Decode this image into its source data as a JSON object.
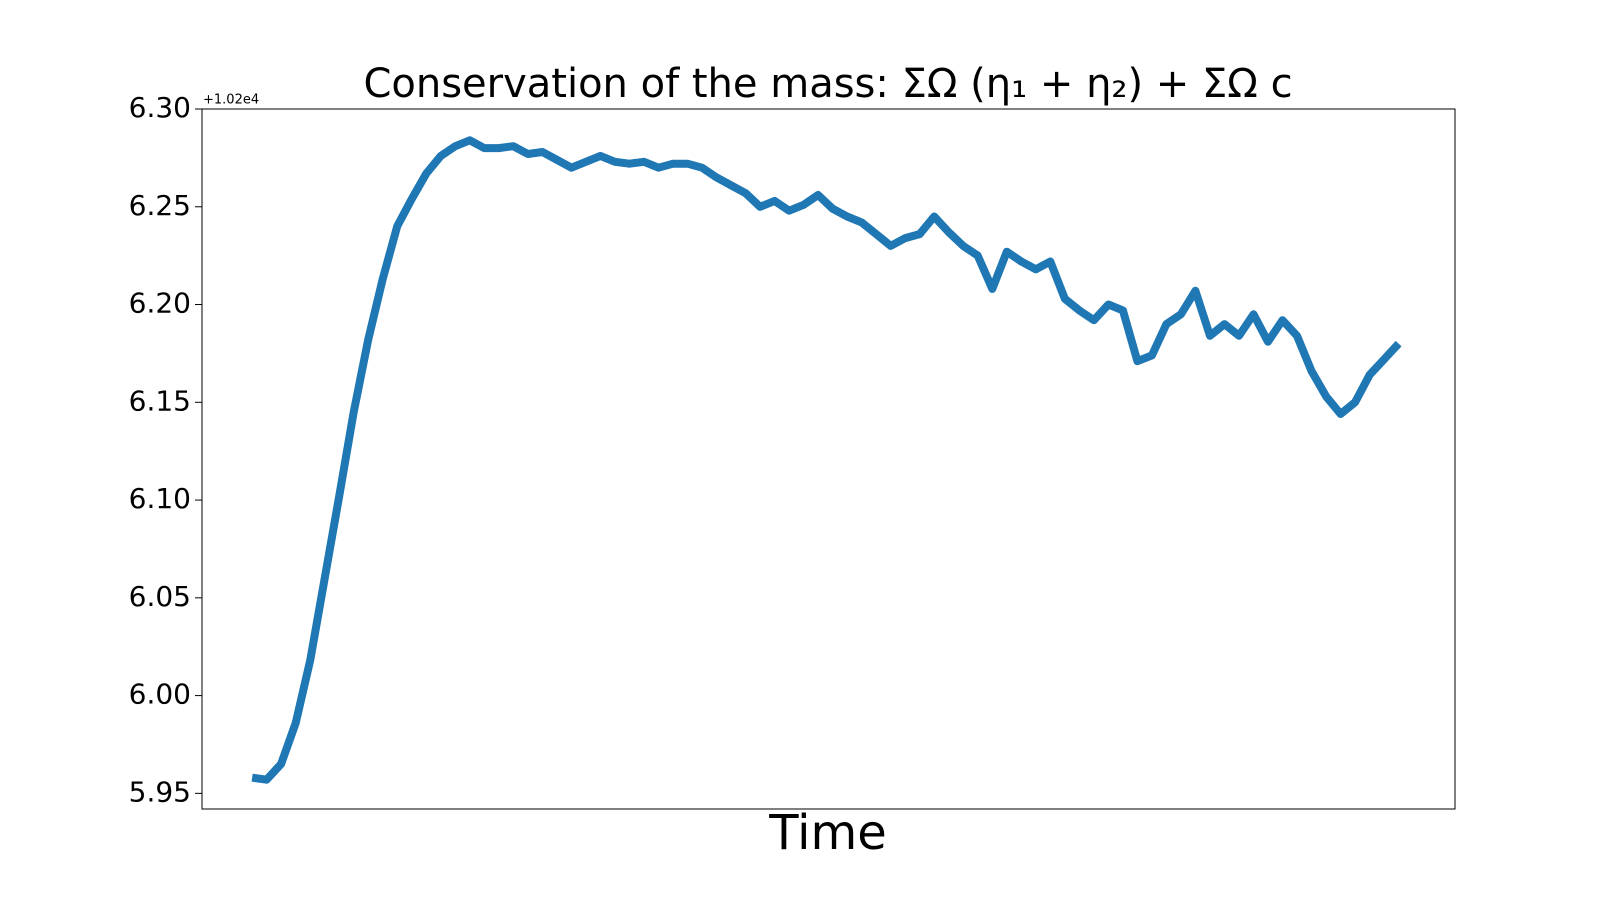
{
  "chart_data": {
    "type": "line",
    "title": "Conservation of the mass: ΣΩ (η₁ + η₂) + ΣΩ c",
    "xlabel": "Time",
    "y_offset_label": "+1.02e4",
    "series": [
      {
        "name": "mass",
        "color": "#1f77b4",
        "values": [
          5.958,
          5.957,
          5.965,
          5.986,
          6.018,
          6.06,
          6.102,
          6.145,
          6.182,
          6.213,
          6.24,
          6.254,
          6.267,
          6.276,
          6.281,
          6.284,
          6.28,
          6.28,
          6.281,
          6.277,
          6.278,
          6.274,
          6.27,
          6.273,
          6.276,
          6.273,
          6.272,
          6.273,
          6.27,
          6.272,
          6.272,
          6.27,
          6.265,
          6.261,
          6.257,
          6.25,
          6.253,
          6.248,
          6.251,
          6.256,
          6.249,
          6.245,
          6.242,
          6.236,
          6.23,
          6.234,
          6.236,
          6.245,
          6.237,
          6.23,
          6.225,
          6.208,
          6.227,
          6.222,
          6.218,
          6.222,
          6.203,
          6.197,
          6.192,
          6.2,
          6.197,
          6.171,
          6.174,
          6.19,
          6.195,
          6.207,
          6.184,
          6.19,
          6.184,
          6.195,
          6.181,
          6.192,
          6.184,
          6.166,
          6.153,
          6.144,
          6.15,
          6.164,
          6.172,
          6.18
        ]
      }
    ],
    "ylim": [
      5.942,
      6.3
    ],
    "yticks": [
      {
        "value": 5.95,
        "label": "5.95"
      },
      {
        "value": 6.0,
        "label": "6.00"
      },
      {
        "value": 6.05,
        "label": "6.05"
      },
      {
        "value": 6.1,
        "label": "6.10"
      },
      {
        "value": 6.15,
        "label": "6.15"
      },
      {
        "value": 6.2,
        "label": "6.20"
      },
      {
        "value": 6.25,
        "label": "6.25"
      },
      {
        "value": 6.3,
        "label": "6.30"
      }
    ]
  }
}
